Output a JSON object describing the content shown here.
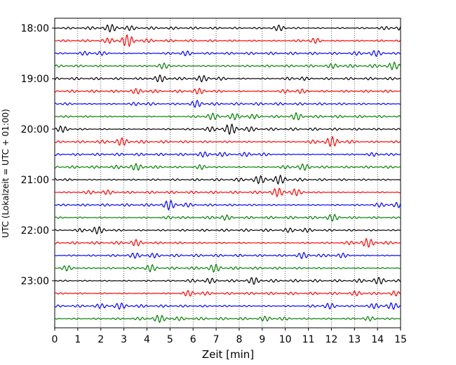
{
  "chart_data": {
    "type": "line",
    "xlabel": "Zeit  [min]",
    "ylabel": "UTC (Lokalzeit = UTC + 01:00)",
    "xlim": [
      0,
      15
    ],
    "xticks": [
      "0",
      "1",
      "2",
      "3",
      "4",
      "5",
      "6",
      "7",
      "8",
      "9",
      "10",
      "11",
      "12",
      "13",
      "14",
      "15"
    ],
    "ytick_labels": [
      "18:00",
      "19:00",
      "20:00",
      "21:00",
      "22:00",
      "23:00"
    ],
    "grid": "vertical dotted at each minute",
    "trace_interval_minutes": 15,
    "trace_count": 24,
    "trace_colors": [
      "#000000",
      "#ff0000",
      "#0000ff",
      "#007f00"
    ]
  }
}
